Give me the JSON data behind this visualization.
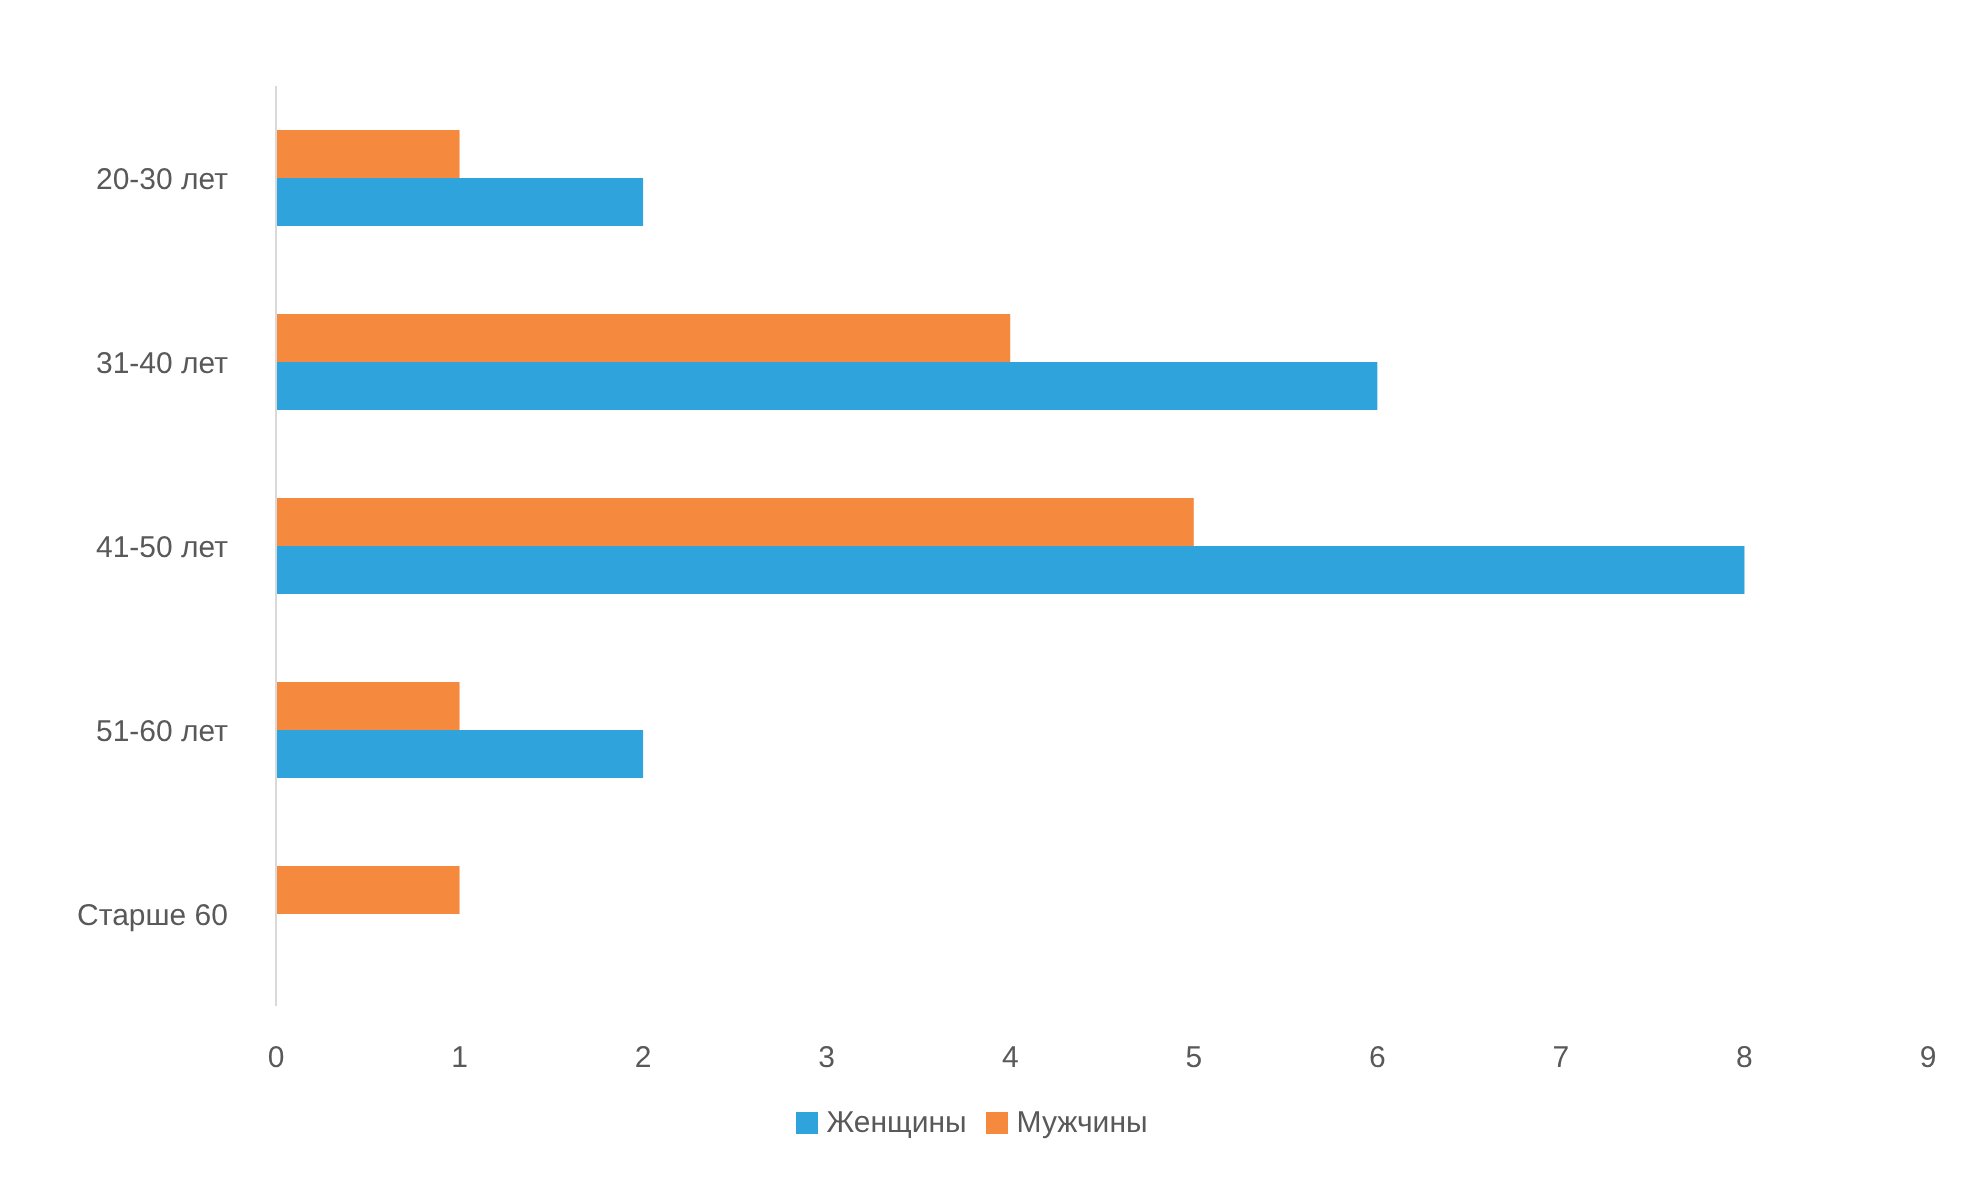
{
  "chart_data": {
    "type": "bar",
    "orientation": "horizontal",
    "categories": [
      "20-30 лет",
      "31-40 лет",
      "41-50 лет",
      "51-60 лет",
      "Старше 60"
    ],
    "series": [
      {
        "name": "Мужчины",
        "color": "#f58a3f",
        "values": [
          1,
          4,
          5,
          1,
          1
        ]
      },
      {
        "name": "Женщины",
        "color": "#2ea3dc",
        "values": [
          2,
          6,
          8,
          2,
          0
        ]
      }
    ],
    "xlim": [
      0,
      9
    ],
    "xticks": [
      0,
      1,
      2,
      3,
      4,
      5,
      6,
      7,
      8,
      9
    ],
    "legend": "bottom"
  }
}
